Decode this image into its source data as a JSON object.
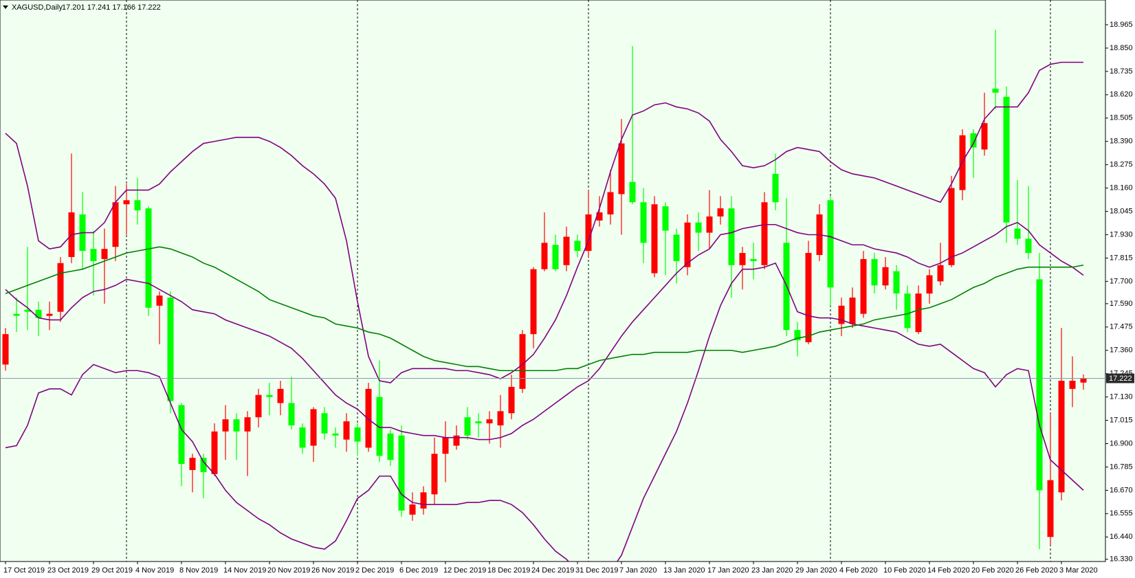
{
  "chart_data": {
    "type": "candlestick",
    "title": "XAGUSD,Daily",
    "ohlc_label": "17.201 17.241 17.166 17.222",
    "categories": [
      "17 Oct 2019",
      null,
      null,
      null,
      "23 Oct 2019",
      null,
      null,
      null,
      "29 Oct 2019",
      null,
      null,
      null,
      "4 Nov 2019",
      null,
      null,
      null,
      "8 Nov 2019",
      null,
      null,
      null,
      "14 Nov 2019",
      null,
      null,
      null,
      "20 Nov 2019",
      null,
      null,
      null,
      "26 Nov 2019",
      null,
      null,
      null,
      "2 Dec 2019",
      null,
      null,
      null,
      "6 Dec 2019",
      null,
      null,
      null,
      "12 Dec 2019",
      null,
      null,
      null,
      "18 Dec 2019",
      null,
      null,
      null,
      "24 Dec 2019",
      null,
      null,
      null,
      "31 Dec 2019",
      null,
      null,
      null,
      "7 Jan 2020",
      null,
      null,
      null,
      "13 Jan 2020",
      null,
      null,
      null,
      "17 Jan 2020",
      null,
      null,
      null,
      "23 Jan 2020",
      null,
      null,
      null,
      "29 Jan 2020",
      null,
      null,
      null,
      "4 Feb 2020",
      null,
      null,
      null,
      "10 Feb 2020",
      null,
      null,
      null,
      "14 Feb 2020",
      null,
      null,
      null,
      "20 Feb 2020",
      null,
      null,
      null,
      "26 Feb 2020",
      null,
      null,
      null,
      "3 Mar 2020",
      null,
      null
    ],
    "open": [
      17.29,
      17.54,
      17.56,
      17.56,
      17.53,
      17.55,
      17.82,
      18.03,
      17.86,
      17.81,
      17.87,
      18.08,
      18.1,
      18.06,
      17.58,
      17.62,
      17.09,
      16.77,
      16.83,
      16.75,
      16.96,
      17.02,
      16.96,
      17.03,
      17.14,
      17.1,
      17.1,
      16.98,
      16.89,
      17.05,
      16.95,
      16.92,
      16.98,
      16.88,
      17.13,
      16.95,
      16.94,
      16.55,
      16.58,
      16.65,
      16.85,
      16.89,
      17.03,
      17.01,
      17.0,
      16.99,
      17.05,
      17.17,
      17.44,
      17.76,
      17.88,
      17.78,
      17.9,
      17.85,
      18.0,
      18.03,
      18.13,
      18.19,
      18.09,
      17.74,
      18.07,
      17.93,
      17.77,
      17.99,
      17.94,
      18.02,
      18.06,
      17.78,
      17.81,
      17.78,
      18.23,
      17.89,
      17.46,
      17.4,
      17.83,
      18.1,
      17.49,
      17.49,
      17.54,
      17.81,
      17.68,
      17.75,
      17.64,
      17.45,
      17.64,
      17.7,
      17.78,
      18.15,
      18.43,
      18.35,
      18.65,
      18.61,
      17.96,
      17.91,
      17.71,
      16.44,
      16.66,
      17.17,
      17.201
    ],
    "high": [
      17.47,
      17.62,
      17.87,
      17.6,
      17.6,
      17.82,
      18.33,
      18.14,
      17.95,
      17.96,
      18.17,
      18.18,
      18.21,
      18.07,
      17.65,
      17.65,
      17.1,
      16.85,
      16.85,
      17.0,
      17.09,
      17.05,
      17.06,
      17.17,
      17.2,
      17.21,
      17.23,
      17.0,
      17.08,
      17.08,
      16.98,
      17.05,
      17.0,
      17.2,
      17.31,
      16.97,
      16.99,
      16.66,
      16.69,
      16.93,
      17.01,
      16.99,
      17.08,
      17.05,
      17.06,
      17.14,
      17.24,
      17.46,
      17.77,
      18.04,
      17.93,
      17.97,
      17.93,
      18.15,
      18.12,
      18.25,
      18.5,
      18.86,
      18.16,
      18.12,
      18.09,
      17.96,
      18.03,
      18.04,
      18.15,
      18.12,
      18.12,
      17.87,
      17.89,
      18.14,
      18.33,
      18.11,
      17.5,
      17.9,
      18.08,
      18.12,
      17.62,
      17.67,
      17.85,
      17.84,
      17.82,
      17.78,
      17.68,
      17.68,
      17.76,
      17.89,
      18.22,
      18.45,
      18.45,
      18.63,
      18.94,
      18.66,
      18.2,
      18.17,
      17.84,
      17.05,
      17.47,
      17.33,
      17.241
    ],
    "low": [
      17.26,
      17.45,
      17.46,
      17.43,
      17.46,
      17.5,
      17.79,
      17.76,
      17.63,
      17.59,
      17.8,
      17.93,
      17.98,
      17.53,
      17.39,
      17.05,
      16.69,
      16.66,
      16.63,
      16.74,
      16.82,
      16.82,
      16.74,
      16.98,
      17.04,
      17.04,
      16.97,
      16.85,
      16.81,
      16.92,
      16.88,
      16.86,
      16.84,
      16.86,
      16.81,
      16.79,
      16.54,
      16.52,
      16.55,
      16.6,
      16.71,
      16.87,
      16.92,
      16.93,
      16.9,
      16.88,
      17.02,
      17.15,
      17.37,
      17.75,
      17.75,
      17.75,
      17.82,
      17.82,
      17.97,
      17.98,
      17.93,
      18.08,
      17.79,
      17.72,
      17.73,
      17.69,
      17.73,
      17.85,
      17.86,
      17.98,
      17.62,
      17.66,
      17.71,
      17.76,
      18.05,
      17.43,
      17.33,
      17.39,
      17.8,
      17.58,
      17.43,
      17.47,
      17.52,
      17.64,
      17.66,
      17.56,
      17.45,
      17.44,
      17.59,
      17.68,
      17.77,
      18.1,
      18.21,
      18.32,
      18.55,
      17.89,
      17.88,
      17.81,
      16.38,
      16.4,
      16.62,
      17.08,
      17.166
    ],
    "close": [
      17.44,
      17.53,
      17.55,
      17.52,
      17.54,
      17.79,
      18.04,
      17.85,
      17.8,
      17.86,
      18.09,
      18.1,
      18.05,
      17.57,
      17.63,
      17.11,
      16.8,
      16.83,
      16.76,
      16.96,
      17.02,
      16.96,
      17.03,
      17.14,
      17.13,
      17.17,
      16.99,
      16.88,
      17.07,
      16.95,
      16.94,
      17.01,
      16.91,
      17.17,
      16.84,
      16.82,
      16.57,
      16.6,
      16.66,
      16.85,
      16.93,
      16.94,
      16.94,
      17.0,
      17.02,
      17.06,
      17.18,
      17.44,
      17.76,
      17.89,
      17.76,
      17.92,
      17.85,
      18.03,
      18.04,
      18.14,
      18.38,
      18.09,
      17.89,
      18.08,
      17.95,
      17.8,
      17.99,
      17.94,
      18.02,
      18.06,
      17.78,
      17.84,
      17.8,
      18.09,
      18.09,
      17.46,
      17.41,
      17.84,
      18.03,
      17.67,
      17.58,
      17.62,
      17.81,
      17.68,
      17.77,
      17.64,
      17.47,
      17.64,
      17.73,
      17.78,
      18.16,
      18.42,
      18.36,
      18.48,
      18.63,
      17.99,
      17.91,
      17.84,
      16.67,
      16.72,
      17.21,
      17.21,
      17.222
    ],
    "up_color": "#ff0000",
    "down_color": "#00ff00",
    "overlays": [
      {
        "color": "#800080",
        "values": [
          18.43,
          18.38,
          18.17,
          17.9,
          17.86,
          17.87,
          17.93,
          17.94,
          17.94,
          17.99,
          18.09,
          18.15,
          18.15,
          18.15,
          18.18,
          18.24,
          18.29,
          18.34,
          18.38,
          18.39,
          18.4,
          18.41,
          18.41,
          18.41,
          18.39,
          18.36,
          18.32,
          18.27,
          18.23,
          18.18,
          18.11,
          17.9,
          17.6,
          17.33,
          17.21,
          17.2,
          17.25,
          17.27,
          17.27,
          17.27,
          17.27,
          17.26,
          17.26,
          17.25,
          17.24,
          17.22,
          17.25,
          17.29,
          17.34,
          17.42,
          17.51,
          17.63,
          17.77,
          17.9,
          18.06,
          18.24,
          18.4,
          18.52,
          18.54,
          18.57,
          18.58,
          18.56,
          18.55,
          18.53,
          18.49,
          18.4,
          18.34,
          18.27,
          18.26,
          18.27,
          18.3,
          18.34,
          18.36,
          18.35,
          18.34,
          18.29,
          18.25,
          18.23,
          18.22,
          18.21,
          18.19,
          18.17,
          18.15,
          18.13,
          18.11,
          18.09,
          18.18,
          18.29,
          18.38,
          18.5,
          18.56,
          18.56,
          18.56,
          18.63,
          18.74,
          18.77,
          18.78,
          18.78,
          18.78
        ]
      },
      {
        "color": "#800080",
        "values": [
          17.66,
          17.61,
          17.57,
          17.52,
          17.51,
          17.51,
          17.57,
          17.62,
          17.65,
          17.66,
          17.68,
          17.71,
          17.7,
          17.69,
          17.66,
          17.63,
          17.6,
          17.56,
          17.55,
          17.54,
          17.51,
          17.49,
          17.47,
          17.45,
          17.43,
          17.4,
          17.37,
          17.32,
          17.26,
          17.2,
          17.14,
          17.1,
          17.07,
          17.02,
          16.98,
          16.98,
          16.96,
          16.95,
          16.94,
          16.94,
          16.93,
          16.93,
          16.93,
          16.92,
          16.92,
          16.93,
          16.95,
          16.99,
          17.02,
          17.06,
          17.1,
          17.14,
          17.18,
          17.21,
          17.27,
          17.35,
          17.43,
          17.5,
          17.56,
          17.62,
          17.68,
          17.74,
          17.79,
          17.83,
          17.86,
          17.93,
          17.94,
          17.96,
          17.97,
          17.98,
          17.98,
          17.96,
          17.94,
          17.93,
          17.93,
          17.92,
          17.9,
          17.88,
          17.88,
          17.86,
          17.85,
          17.84,
          17.82,
          17.79,
          17.77,
          17.79,
          17.82,
          17.84,
          17.87,
          17.9,
          17.93,
          17.97,
          17.99,
          17.95,
          17.88,
          17.84,
          17.8,
          17.77,
          17.73
        ]
      },
      {
        "color": "#800080",
        "values": [
          16.88,
          16.89,
          16.99,
          17.15,
          17.17,
          17.17,
          17.14,
          17.24,
          17.29,
          17.27,
          17.25,
          17.26,
          17.26,
          17.25,
          17.23,
          17.1,
          16.97,
          16.91,
          16.81,
          16.75,
          16.67,
          16.61,
          16.57,
          16.53,
          16.5,
          16.46,
          16.43,
          16.41,
          16.39,
          16.38,
          16.42,
          16.52,
          16.63,
          16.67,
          16.74,
          16.74,
          16.65,
          16.61,
          16.6,
          16.6,
          16.6,
          16.6,
          16.61,
          16.61,
          16.62,
          16.62,
          16.6,
          16.56,
          16.5,
          16.43,
          16.37,
          16.33,
          16.27,
          16.24,
          16.22,
          16.27,
          16.35,
          16.49,
          16.63,
          16.74,
          16.85,
          16.96,
          17.1,
          17.26,
          17.43,
          17.58,
          17.69,
          17.76,
          17.76,
          17.77,
          17.79,
          17.68,
          17.55,
          17.53,
          17.52,
          17.52,
          17.51,
          17.49,
          17.48,
          17.47,
          17.46,
          17.45,
          17.42,
          17.39,
          17.38,
          17.39,
          17.35,
          17.31,
          17.27,
          17.25,
          17.18,
          17.24,
          17.27,
          17.26,
          16.99,
          16.82,
          16.77,
          16.72,
          16.67
        ]
      },
      {
        "color": "#007f00",
        "values": [
          17.64,
          17.66,
          17.68,
          17.7,
          17.72,
          17.74,
          17.75,
          17.76,
          17.78,
          17.8,
          17.82,
          17.84,
          17.85,
          17.86,
          17.87,
          17.86,
          17.84,
          17.82,
          17.79,
          17.77,
          17.74,
          17.71,
          17.68,
          17.65,
          17.61,
          17.59,
          17.57,
          17.55,
          17.53,
          17.52,
          17.49,
          17.48,
          17.47,
          17.45,
          17.44,
          17.42,
          17.39,
          17.36,
          17.33,
          17.31,
          17.3,
          17.29,
          17.28,
          17.28,
          17.27,
          17.26,
          17.26,
          17.26,
          17.26,
          17.26,
          17.26,
          17.27,
          17.27,
          17.29,
          17.31,
          17.32,
          17.33,
          17.34,
          17.34,
          17.35,
          17.35,
          17.35,
          17.35,
          17.36,
          17.36,
          17.36,
          17.36,
          17.35,
          17.36,
          17.37,
          17.38,
          17.4,
          17.42,
          17.43,
          17.45,
          17.46,
          17.47,
          17.48,
          17.49,
          17.51,
          17.52,
          17.53,
          17.54,
          17.56,
          17.57,
          17.59,
          17.61,
          17.64,
          17.67,
          17.69,
          17.72,
          17.74,
          17.76,
          17.77,
          17.77,
          17.77,
          17.77,
          17.77,
          17.78
        ]
      }
    ],
    "current_price": 17.222,
    "ylim": [
      16.319,
      19.087
    ],
    "yticks": [
      18.965,
      {
        "value": 18.85,
        "label": "18.850"
      },
      18.735,
      {
        "value": 18.62,
        "label": "18.620"
      },
      18.505,
      {
        "value": 18.39,
        "label": "18.390"
      },
      18.275,
      {
        "value": 18.16,
        "label": "18.160"
      },
      18.045,
      {
        "value": 17.93,
        "label": "17.930"
      },
      17.815,
      {
        "value": 17.7,
        "label": "17.700"
      },
      {
        "value": 17.59,
        "label": "17.590"
      },
      17.475,
      {
        "value": 17.36,
        "label": "17.360"
      },
      17.245,
      {
        "value": 17.13,
        "label": "17.130"
      },
      17.015,
      {
        "value": 16.9,
        "label": "16.900"
      },
      16.785,
      {
        "value": 16.67,
        "label": "16.670"
      },
      16.555,
      {
        "value": 16.44,
        "label": "16.440"
      },
      {
        "value": 16.33,
        "label": "16.330"
      }
    ],
    "grid": false
  }
}
